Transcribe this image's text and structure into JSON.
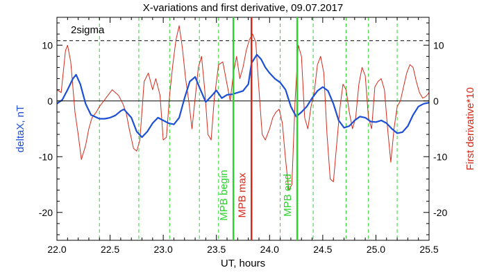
{
  "chart_data": {
    "type": "line",
    "title": "X-variations and first derivative, 09.07.2017",
    "xlabel": "UT, hours",
    "ylabel_left": "deltaX, nT",
    "ylabel_right": "First derivative*10",
    "xlim": [
      22.0,
      25.5
    ],
    "ylim": [
      -25,
      15
    ],
    "x_ticks": [
      22.0,
      22.5,
      23.0,
      23.5,
      24.0,
      24.5,
      25.0,
      25.5
    ],
    "x_tick_labels": [
      "22.0",
      "22.5",
      "23.0",
      "23.5",
      "24.0",
      "24.5",
      "25.0",
      "25.5"
    ],
    "y_ticks": [
      -20,
      -10,
      0,
      10
    ],
    "y_tick_labels": [
      "-20",
      "-10",
      "0",
      "10"
    ],
    "sigma_label": "2sigma",
    "sigma_level": 10.8,
    "grid": false,
    "colors": {
      "deltaX": "#1c4fd6",
      "derivative": "#d42a1a",
      "green_marks": "#2ad42a",
      "max_mark": "#d42a1a",
      "zero_line": "#000000",
      "sigma_line": "#000000"
    },
    "dashed_green_lines_x": [
      22.4,
      22.77,
      23.06,
      23.34,
      23.52,
      24.1,
      24.41,
      24.72,
      24.93,
      25.2
    ],
    "markers": [
      {
        "label": "MPB begin",
        "x": 23.66,
        "color": "#2ad42a"
      },
      {
        "label": "MPB max",
        "x": 23.83,
        "color": "#d42a1a"
      },
      {
        "label": "MPB end",
        "x": 24.26,
        "color": "#2ad42a"
      }
    ],
    "series": [
      {
        "name": "deltaX",
        "color": "#1c4fd6",
        "x": [
          22.0,
          22.05,
          22.1,
          22.15,
          22.18,
          22.22,
          22.27,
          22.32,
          22.4,
          22.45,
          22.5,
          22.55,
          22.6,
          22.63,
          22.7,
          22.75,
          22.8,
          22.85,
          22.9,
          22.95,
          23.0,
          23.05,
          23.1,
          23.15,
          23.2,
          23.25,
          23.3,
          23.35,
          23.4,
          23.45,
          23.5,
          23.55,
          23.6,
          23.65,
          23.7,
          23.75,
          23.8,
          23.83,
          23.88,
          23.92,
          23.96,
          24.0,
          24.05,
          24.1,
          24.15,
          24.2,
          24.25,
          24.3,
          24.35,
          24.4,
          24.45,
          24.5,
          24.55,
          24.6,
          24.65,
          24.7,
          24.75,
          24.8,
          24.85,
          24.9,
          24.95,
          25.0,
          25.05,
          25.1,
          25.15,
          25.2,
          25.25,
          25.3,
          25.35,
          25.4,
          25.45,
          25.5
        ],
        "y": [
          -0.5,
          0.2,
          2.0,
          4.0,
          4.7,
          3.0,
          -0.5,
          -2.5,
          -3.2,
          -3.2,
          -3.0,
          -2.6,
          -1.8,
          -1.5,
          -3.0,
          -5.5,
          -6.5,
          -5.5,
          -4.0,
          -3.0,
          -3.5,
          -4.0,
          -4.2,
          -3.0,
          0.5,
          3.5,
          4.3,
          2.0,
          -0.2,
          0.8,
          1.9,
          0.5,
          1.1,
          1.2,
          1.5,
          1.8,
          3.0,
          6.8,
          8.3,
          7.5,
          6.0,
          5.0,
          4.0,
          3.3,
          2.0,
          -1.0,
          -2.8,
          -2.0,
          -1.0,
          0.5,
          1.8,
          2.5,
          1.8,
          -0.5,
          -3.5,
          -4.8,
          -4.5,
          -3.5,
          -2.8,
          -3.0,
          -3.7,
          -3.8,
          -3.5,
          -4.0,
          -5.0,
          -5.8,
          -5.6,
          -4.5,
          -2.5,
          -1.0,
          -0.5,
          -0.3
        ]
      },
      {
        "name": "First derivative*10",
        "color": "#d42a1a",
        "x": [
          22.0,
          22.04,
          22.08,
          22.1,
          22.13,
          22.17,
          22.2,
          22.23,
          22.27,
          22.3,
          22.33,
          22.37,
          22.4,
          22.44,
          22.48,
          22.52,
          22.55,
          22.58,
          22.62,
          22.65,
          22.68,
          22.72,
          22.75,
          22.78,
          22.82,
          22.86,
          22.9,
          22.93,
          22.97,
          23.0,
          23.03,
          23.06,
          23.09,
          23.12,
          23.15,
          23.18,
          23.21,
          23.24,
          23.27,
          23.3,
          23.33,
          23.36,
          23.39,
          23.42,
          23.45,
          23.48,
          23.52,
          23.56,
          23.6,
          23.63,
          23.66,
          23.69,
          23.72,
          23.75,
          23.78,
          23.81,
          23.84,
          23.87,
          23.9,
          23.93,
          23.96,
          24.0,
          24.03,
          24.06,
          24.09,
          24.12,
          24.15,
          24.18,
          24.21,
          24.24,
          24.27,
          24.3,
          24.33,
          24.36,
          24.39,
          24.42,
          24.45,
          24.48,
          24.51,
          24.54,
          24.57,
          24.6,
          24.63,
          24.66,
          24.69,
          24.72,
          24.75,
          24.78,
          24.81,
          24.84,
          24.87,
          24.9,
          24.93,
          24.96,
          24.99,
          25.02,
          25.05,
          25.08,
          25.11,
          25.14,
          25.17,
          25.2,
          25.23,
          25.26,
          25.29,
          25.32,
          25.35,
          25.38,
          25.41,
          25.44,
          25.47,
          25.5
        ],
        "y": [
          2.0,
          1.5,
          9.0,
          10.0,
          7.0,
          -2.0,
          -6.0,
          -10.5,
          -8.0,
          -5.0,
          -3.0,
          -2.0,
          -1.0,
          0.0,
          1.0,
          2.0,
          1.5,
          1.0,
          -0.5,
          -2.0,
          -5.0,
          -8.5,
          -9.0,
          -7.0,
          3.5,
          5.0,
          2.0,
          4.0,
          1.0,
          -7.0,
          -6.5,
          1.0,
          6.5,
          11.0,
          13.5,
          9.5,
          4.0,
          0.0,
          -5.0,
          0.5,
          6.0,
          8.0,
          2.0,
          -6.0,
          -7.0,
          0.5,
          6.5,
          7.0,
          3.0,
          0.0,
          5.0,
          8.0,
          4.0,
          6.0,
          9.0,
          11.0,
          12.0,
          10.5,
          2.0,
          -6.0,
          -7.0,
          -5.0,
          -3.0,
          -2.0,
          -1.5,
          -4.0,
          -10.5,
          -16.0,
          -15.0,
          0.0,
          10.0,
          8.0,
          -3.0,
          -5.0,
          -1.0,
          1.5,
          6.5,
          8.0,
          5.0,
          -6.0,
          -14.0,
          -14.5,
          -8.0,
          -1.5,
          3.0,
          2.0,
          -2.0,
          -5.0,
          -3.0,
          3.0,
          6.0,
          4.5,
          -3.0,
          -5.0,
          2.5,
          3.5,
          4.0,
          2.0,
          -5.0,
          -11.0,
          -5.0,
          -1.0,
          0.0,
          2.5,
          5.0,
          6.5,
          6.0,
          3.5,
          1.5,
          0.5,
          0.8,
          1.5
        ]
      }
    ]
  }
}
